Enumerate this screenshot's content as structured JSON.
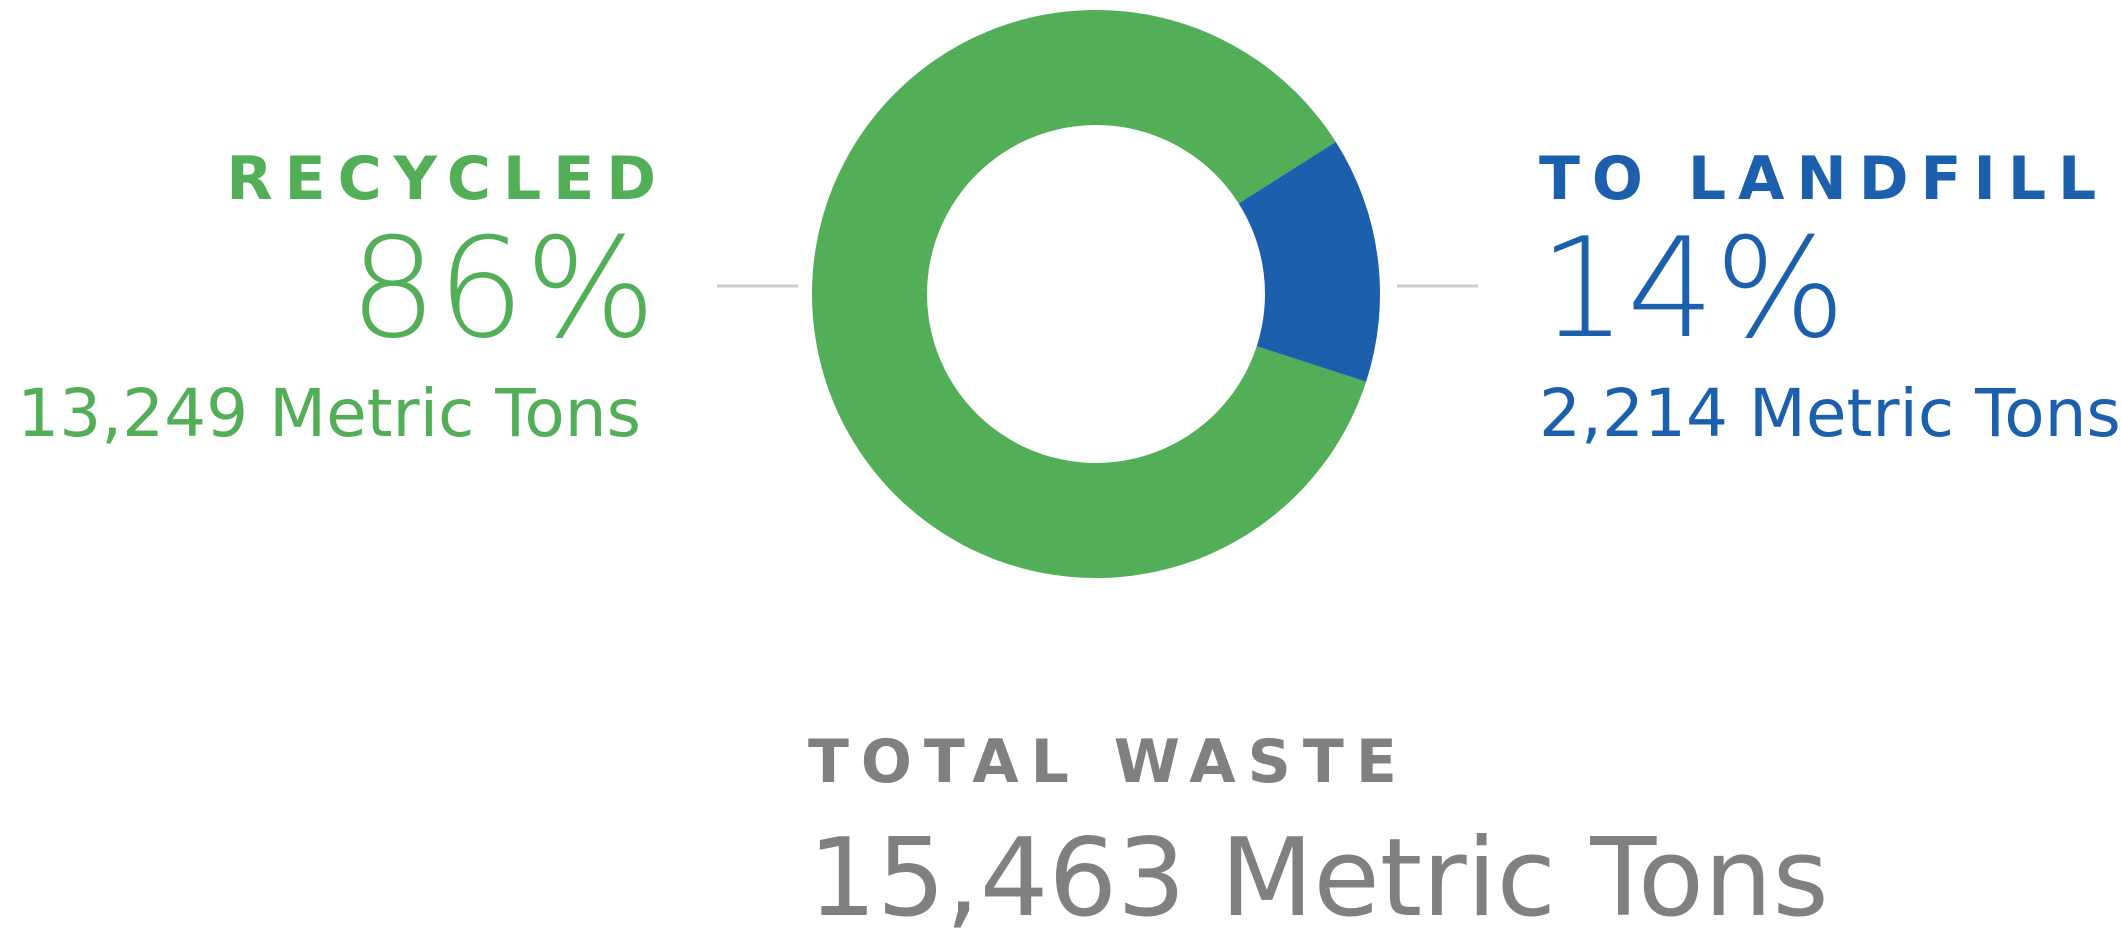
{
  "chart_data": {
    "type": "donut",
    "categories": [
      "RECYCLED",
      "TO LANDFILL"
    ],
    "values": [
      86,
      14
    ],
    "value_labels": [
      "86%",
      "14%"
    ],
    "colors": [
      "#52ae57",
      "#1b5fad"
    ],
    "amount_labels": [
      "13,249 Metric Tons",
      "2,214 Metric Tons"
    ],
    "total_title": "TOTAL WASTE",
    "total_label": "15,463 Metric Tons"
  }
}
